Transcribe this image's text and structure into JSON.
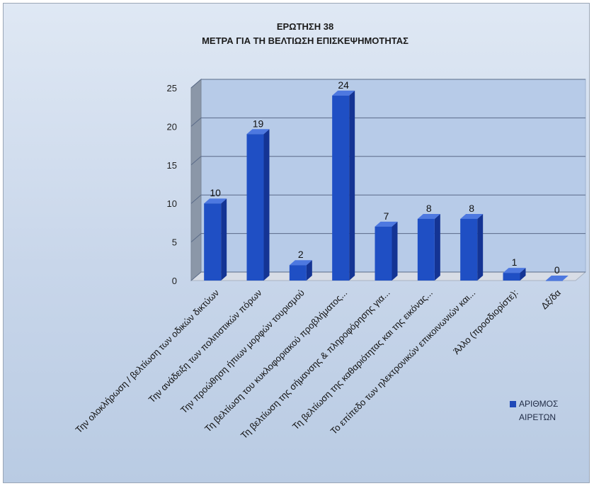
{
  "chart_data": {
    "type": "bar",
    "title": [
      "ΕΡΩΤΗΣΗ 38",
      "ΜΕΤΡΑ ΓΙΑ ΤΗ ΒΕΛΤΙΩΣΗ ΕΠΙΣΚΕΨΗΜΟΤΗΤΑΣ"
    ],
    "categories": [
      "Την ολοκλήρωση / βελτίωση των οδικών δικτύων",
      "Την ανάδειξη των πολιτιστικών πόρων",
      "Την προώθηση ήπιων μορφών τουρισμού",
      "Τη βελτίωση του κυκλοφοριακού προβλήματος...",
      "Τη βελτίωση της σήμανσης & πληροφόρησης για...",
      "Τη βελτίωση της καθαριότητας και της εικόνας...",
      "Το επίπεδο των ηλεκτρονικών επικοινωνιών και...",
      "Άλλο (προσδιορίστε):",
      "Δξ/δα"
    ],
    "series": [
      {
        "name": "ΑΡΙΘΜΟΣ ΑΙΡΕΤΩΝ",
        "values": [
          10,
          19,
          2,
          24,
          7,
          8,
          8,
          1,
          0
        ]
      }
    ],
    "yticks": [
      0,
      5,
      10,
      15,
      20,
      25
    ],
    "ylim": [
      0,
      25
    ],
    "legend_position": "right",
    "grid": true,
    "colors": {
      "bar": "#1f4fc4",
      "bar_side": "#143494",
      "bar_top": "#4d78e0"
    }
  },
  "legend": {
    "label": "ΑΡΙΘΜΟΣ\nΑΙΡΕΤΩΝ"
  }
}
